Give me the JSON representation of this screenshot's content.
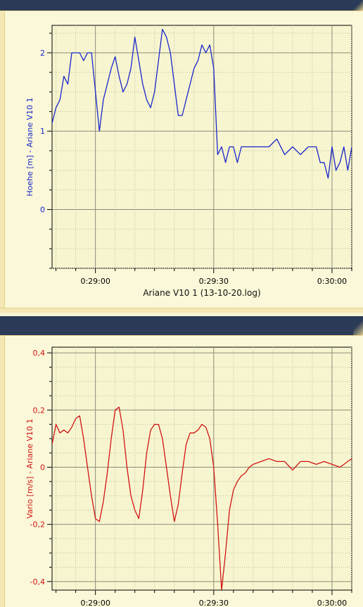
{
  "colors": {
    "titlebar": "#2b3a56",
    "panel_bg": "#faf8d8",
    "plot_bg": "#f7f5cf",
    "grid": "#a8a890",
    "hoehe_line": "#1a26cc",
    "vario_line": "#d01414"
  },
  "chart_data": [
    {
      "type": "line",
      "title": "",
      "xlabel": "Ariane V10 1 (13-10-20.log)",
      "ylabel": "Hoehe [m] - Ariane V10 1",
      "x_unit": "time (mm:ss)",
      "xlim": [
        "0:28:49",
        "0:30:05"
      ],
      "ylim": [
        -0.75,
        2.35
      ],
      "yticks": [
        0,
        1,
        2
      ],
      "ytick_labels": [
        "0",
        "1",
        "2"
      ],
      "xticks": [
        "0:29:00",
        "0:29:30",
        "0:30:00"
      ],
      "xtick_labels": [
        "0:29:00",
        "0:29:30",
        "0:30:00"
      ],
      "grid": true,
      "series": [
        {
          "color": "#1a26cc",
          "x": [
            "0:28:49.0",
            "0:28:50.0",
            "0:28:51.0",
            "0:28:52.0",
            "0:28:53.0",
            "0:28:54.0",
            "0:28:55.0",
            "0:28:56.0",
            "0:28:57.0",
            "0:28:58.0",
            "0:28:59.0",
            "0:29:00.0",
            "0:29:01.0",
            "0:29:02.0",
            "0:29:03.0",
            "0:29:04.0",
            "0:29:05.0",
            "0:29:06.0",
            "0:29:07.0",
            "0:29:08.0",
            "0:29:09.0",
            "0:29:10.0",
            "0:29:11.0",
            "0:29:12.0",
            "0:29:13.0",
            "0:29:14.0",
            "0:29:15.0",
            "0:29:16.0",
            "0:29:17.0",
            "0:29:18.0",
            "0:29:19.0",
            "0:29:20.0",
            "0:29:21.0",
            "0:29:22.0",
            "0:29:23.0",
            "0:29:24.0",
            "0:29:25.0",
            "0:29:26.0",
            "0:29:27.0",
            "0:29:28.0",
            "0:29:29.0",
            "0:29:30.0",
            "0:29:31.0",
            "0:29:32.0",
            "0:29:33.0",
            "0:29:34.0",
            "0:29:35.0",
            "0:29:36.0",
            "0:29:37.0",
            "0:29:38.0",
            "0:29:40.0",
            "0:29:42.0",
            "0:29:44.0",
            "0:29:46.0",
            "0:29:48.0",
            "0:29:50.0",
            "0:29:52.0",
            "0:29:54.0",
            "0:29:56.0",
            "0:29:57.0",
            "0:29:58.0",
            "0:29:59.0",
            "0:30:00.0",
            "0:30:01.0",
            "0:30:02.0",
            "0:30:03.0",
            "0:30:04.0",
            "0:30:05.0"
          ],
          "values": [
            1.1,
            1.3,
            1.4,
            1.7,
            1.6,
            2.0,
            2.0,
            2.0,
            1.9,
            2.0,
            2.0,
            1.5,
            1.0,
            1.4,
            1.6,
            1.8,
            1.95,
            1.7,
            1.5,
            1.6,
            1.8,
            2.2,
            1.9,
            1.6,
            1.4,
            1.3,
            1.5,
            1.9,
            2.3,
            2.2,
            2.0,
            1.6,
            1.2,
            1.2,
            1.4,
            1.6,
            1.8,
            1.9,
            2.1,
            2.0,
            2.1,
            1.8,
            0.7,
            0.8,
            0.6,
            0.8,
            0.8,
            0.6,
            0.8,
            0.8,
            0.8,
            0.8,
            0.8,
            0.9,
            0.7,
            0.8,
            0.7,
            0.8,
            0.8,
            0.6,
            0.6,
            0.4,
            0.8,
            0.5,
            0.6,
            0.8,
            0.5,
            0.8
          ]
        }
      ]
    },
    {
      "type": "line",
      "title": "",
      "xlabel": "",
      "ylabel": "Vario [m/s] - Ariane V10 1",
      "x_unit": "time (mm:ss)",
      "xlim": [
        "0:28:49",
        "0:30:05"
      ],
      "ylim": [
        -0.43,
        0.42
      ],
      "yticks": [
        -0.4,
        -0.2,
        0,
        0.2,
        0.4
      ],
      "ytick_labels": [
        "-0,4",
        "-0,2",
        "0",
        "0,2",
        "0,4"
      ],
      "xticks": [
        "0:29:00",
        "0:29:30",
        "0:30:00"
      ],
      "xtick_labels": [
        "0:29:00",
        "0:29:30",
        "0:30:00"
      ],
      "grid": true,
      "series": [
        {
          "color": "#d01414",
          "x": [
            "0:28:49.0",
            "0:28:50.0",
            "0:28:51.0",
            "0:28:52.0",
            "0:28:53.0",
            "0:28:54.0",
            "0:28:55.0",
            "0:28:56.0",
            "0:28:57.0",
            "0:28:58.0",
            "0:28:59.0",
            "0:29:00.0",
            "0:29:01.0",
            "0:29:02.0",
            "0:29:03.0",
            "0:29:04.0",
            "0:29:05.0",
            "0:29:06.0",
            "0:29:07.0",
            "0:29:08.0",
            "0:29:09.0",
            "0:29:10.0",
            "0:29:11.0",
            "0:29:12.0",
            "0:29:13.0",
            "0:29:14.0",
            "0:29:15.0",
            "0:29:16.0",
            "0:29:17.0",
            "0:29:18.0",
            "0:29:19.0",
            "0:29:20.0",
            "0:29:21.0",
            "0:29:22.0",
            "0:29:23.0",
            "0:29:24.0",
            "0:29:25.0",
            "0:29:26.0",
            "0:29:27.0",
            "0:29:28.0",
            "0:29:29.0",
            "0:29:30.0",
            "0:29:31.0",
            "0:29:32.0",
            "0:29:33.0",
            "0:29:34.0",
            "0:29:35.0",
            "0:29:36.0",
            "0:29:37.0",
            "0:29:38.0",
            "0:29:39.0",
            "0:29:40.0",
            "0:29:42.0",
            "0:29:44.0",
            "0:29:46.0",
            "0:29:48.0",
            "0:29:50.0",
            "0:29:52.0",
            "0:29:54.0",
            "0:29:56.0",
            "0:29:58.0",
            "0:30:00.0",
            "0:30:02.0",
            "0:30:04.0",
            "0:30:05.0"
          ],
          "values": [
            0.08,
            0.15,
            0.12,
            0.13,
            0.12,
            0.14,
            0.17,
            0.18,
            0.1,
            0.0,
            -0.1,
            -0.18,
            -0.19,
            -0.12,
            -0.02,
            0.1,
            0.2,
            0.21,
            0.13,
            0.0,
            -0.1,
            -0.15,
            -0.18,
            -0.08,
            0.05,
            0.13,
            0.15,
            0.15,
            0.1,
            0.0,
            -0.1,
            -0.19,
            -0.13,
            -0.02,
            0.08,
            0.12,
            0.12,
            0.13,
            0.15,
            0.14,
            0.1,
            0.0,
            -0.2,
            -0.43,
            -0.3,
            -0.15,
            -0.08,
            -0.05,
            -0.03,
            -0.02,
            0.0,
            0.01,
            0.02,
            0.03,
            0.02,
            0.02,
            -0.01,
            0.02,
            0.02,
            0.01,
            0.02,
            0.01,
            0.0,
            0.02,
            0.03
          ]
        }
      ]
    }
  ]
}
